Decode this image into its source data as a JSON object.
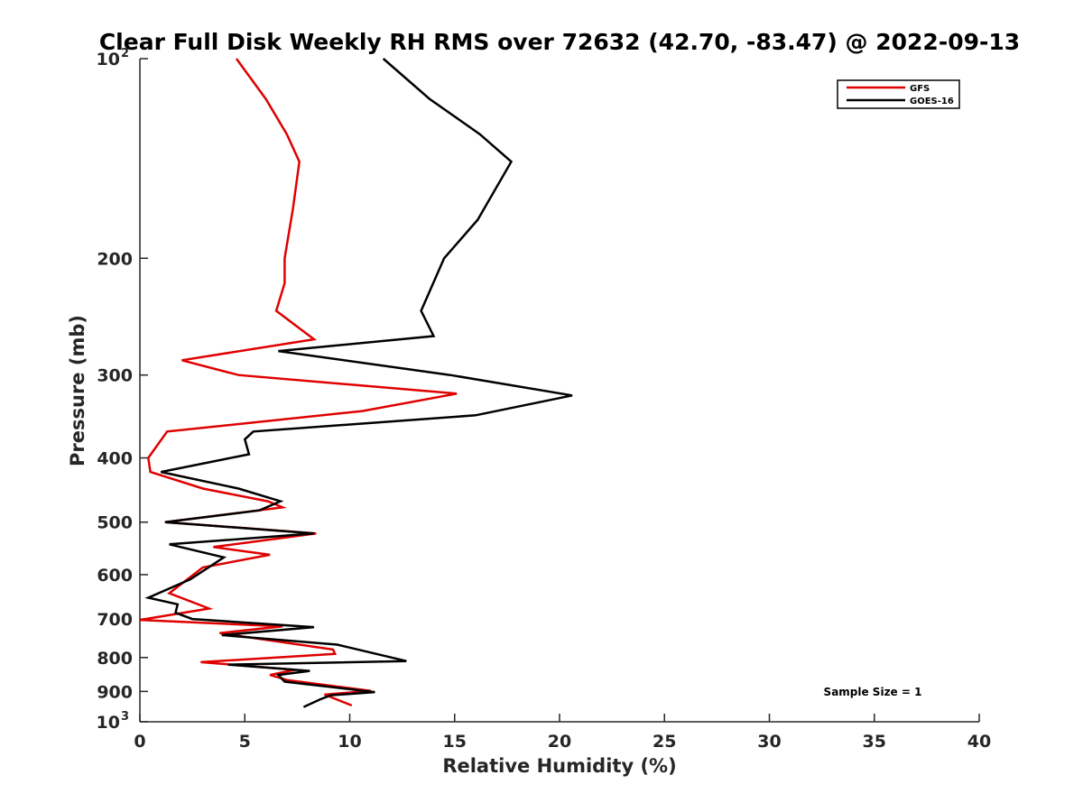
{
  "chart_data": {
    "type": "line",
    "title": "Clear Full Disk Weekly RH RMS over 72632 (42.70, -83.47) @ 2022-09-13",
    "xlabel": "Relative Humidity (%)",
    "ylabel": "Pressure (mb)",
    "xlim": [
      0,
      40
    ],
    "ylim": [
      100,
      1000
    ],
    "yscale": "log",
    "yreversed": true,
    "grid": false,
    "legend_position": "top-right",
    "x_ticks": [
      "0",
      "5",
      "10",
      "15",
      "20",
      "25",
      "30",
      "35",
      "40"
    ],
    "y_ticks": [
      {
        "value": 100,
        "base": "10",
        "exp": "2"
      },
      {
        "value": 200,
        "base": "200",
        "exp": ""
      },
      {
        "value": 300,
        "base": "300",
        "exp": ""
      },
      {
        "value": 400,
        "base": "400",
        "exp": ""
      },
      {
        "value": 500,
        "base": "500",
        "exp": ""
      },
      {
        "value": 600,
        "base": "600",
        "exp": ""
      },
      {
        "value": 700,
        "base": "700",
        "exp": ""
      },
      {
        "value": 800,
        "base": "800",
        "exp": ""
      },
      {
        "value": 900,
        "base": "900",
        "exp": ""
      },
      {
        "value": 1000,
        "base": "10",
        "exp": "3"
      }
    ],
    "annotation": "Sample Size = 1",
    "series": [
      {
        "name": "GFS",
        "color": "#e00000",
        "points": [
          [
            4.6,
            100
          ],
          [
            6.0,
            115
          ],
          [
            7.0,
            130
          ],
          [
            7.6,
            143
          ],
          [
            7.3,
            168
          ],
          [
            6.9,
            200
          ],
          [
            6.9,
            218
          ],
          [
            6.5,
            240
          ],
          [
            8.3,
            265
          ],
          [
            2.0,
            285
          ],
          [
            4.7,
            300
          ],
          [
            15.1,
            320
          ],
          [
            10.6,
            340
          ],
          [
            1.3,
            365
          ],
          [
            0.4,
            400
          ],
          [
            0.5,
            420
          ],
          [
            3.0,
            445
          ],
          [
            6.1,
            465
          ],
          [
            6.8,
            475
          ],
          [
            1.2,
            500
          ],
          [
            8.4,
            520
          ],
          [
            3.5,
            545
          ],
          [
            6.2,
            560
          ],
          [
            3.0,
            585
          ],
          [
            1.4,
            640
          ],
          [
            3.3,
            675
          ],
          [
            0.0,
            702
          ],
          [
            6.8,
            718
          ],
          [
            3.8,
            735
          ],
          [
            9.2,
            778
          ],
          [
            9.3,
            790
          ],
          [
            2.9,
            813
          ],
          [
            7.4,
            835
          ],
          [
            6.2,
            850
          ],
          [
            7.0,
            865
          ],
          [
            11.0,
            898
          ],
          [
            8.8,
            910
          ],
          [
            10.1,
            945
          ]
        ]
      },
      {
        "name": "GOES-16",
        "color": "#000000",
        "points": [
          [
            11.6,
            100
          ],
          [
            13.8,
            115
          ],
          [
            16.2,
            130
          ],
          [
            17.7,
            143
          ],
          [
            16.1,
            175
          ],
          [
            14.5,
            200
          ],
          [
            13.4,
            240
          ],
          [
            14.0,
            262
          ],
          [
            6.6,
            276
          ],
          [
            14.8,
            300
          ],
          [
            20.6,
            322
          ],
          [
            16.0,
            345
          ],
          [
            5.4,
            365
          ],
          [
            5.0,
            375
          ],
          [
            5.2,
            395
          ],
          [
            1.0,
            420
          ],
          [
            4.7,
            445
          ],
          [
            6.7,
            465
          ],
          [
            5.7,
            480
          ],
          [
            1.2,
            500
          ],
          [
            8.3,
            520
          ],
          [
            1.4,
            540
          ],
          [
            4.0,
            565
          ],
          [
            2.4,
            610
          ],
          [
            0.4,
            650
          ],
          [
            1.8,
            665
          ],
          [
            1.7,
            685
          ],
          [
            2.5,
            700
          ],
          [
            8.3,
            720
          ],
          [
            3.9,
            740
          ],
          [
            9.4,
            765
          ],
          [
            12.7,
            810
          ],
          [
            4.2,
            820
          ],
          [
            8.1,
            838
          ],
          [
            6.6,
            850
          ],
          [
            6.9,
            870
          ],
          [
            11.2,
            902
          ],
          [
            9.1,
            912
          ],
          [
            8.6,
            925
          ],
          [
            7.8,
            950
          ]
        ]
      }
    ]
  }
}
